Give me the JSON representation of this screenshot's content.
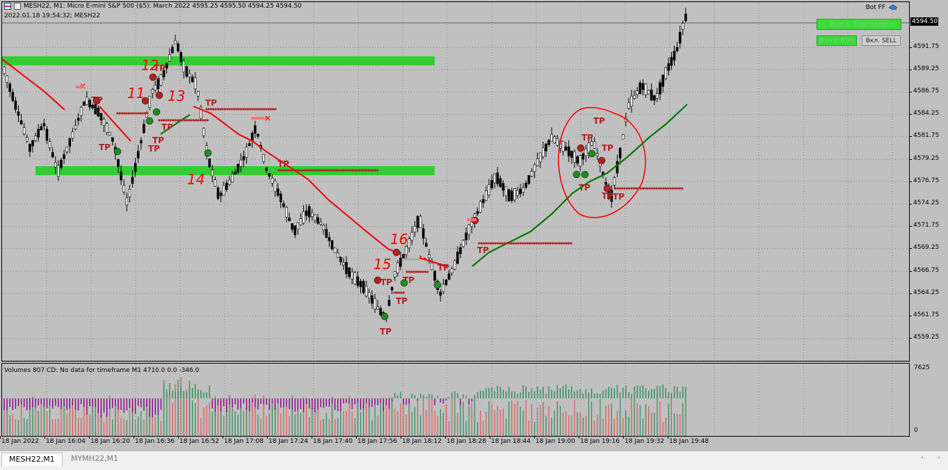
{
  "window": {
    "header": "MESH22, M1:  Micro E-mini S&P 500 ($5): March 2022  4595.25 4595.50 4594.25 4594.50",
    "subheader": "2022.01.18 19:54:32; MESH22",
    "expert_name": "Bot FF"
  },
  "buttons": {
    "trade_toggle": "Выкл. Торговлю",
    "buy_toggle": "Выкл. BUY",
    "sell_toggle": "Вкл. SELL"
  },
  "price_axis": {
    "labels": [
      "4591.75",
      "4589.25",
      "4586.75",
      "4584.25",
      "4581.75",
      "4579.25",
      "4576.75",
      "4574.25",
      "4571.75",
      "4569.25",
      "4566.75",
      "4564.25",
      "4561.75",
      "4559.25"
    ],
    "current": "4594.50"
  },
  "volume_panel": {
    "header": "Volumes 807 CD: No data for timeframe M1 4710.0 0.0 -346.0",
    "max_label": "7625",
    "zero_label": "0"
  },
  "time_axis": {
    "labels": [
      "18 Jan 2022",
      "18 Jan 16:04",
      "18 Jan 16:20",
      "18 Jan 16:36",
      "18 Jan 16:52",
      "18 Jan 17:08",
      "18 Jan 17:24",
      "18 Jan 17:40",
      "18 Jan 17:56",
      "18 Jan 18:12",
      "18 Jan 18:28",
      "18 Jan 18:44",
      "18 Jan 19:00",
      "18 Jan 19:16",
      "18 Jan 19:32",
      "18 Jan 19:48"
    ]
  },
  "annotations": {
    "tp_label": "TP",
    "handwritten": [
      "12",
      "11",
      "13",
      "14",
      "15",
      "16"
    ]
  },
  "tabs": [
    {
      "label": "MESH22,M1",
      "active": true
    },
    {
      "label": "MYMH22,M1",
      "active": false
    }
  ],
  "colors": {
    "background": "#c0c0c0",
    "zone": "#33cc33",
    "bull_ma": "#007700",
    "bear_ma": "#ee1111",
    "tp": "#b22222",
    "vol_up": "#2e8b57",
    "vol_down": "#8b008b"
  }
}
